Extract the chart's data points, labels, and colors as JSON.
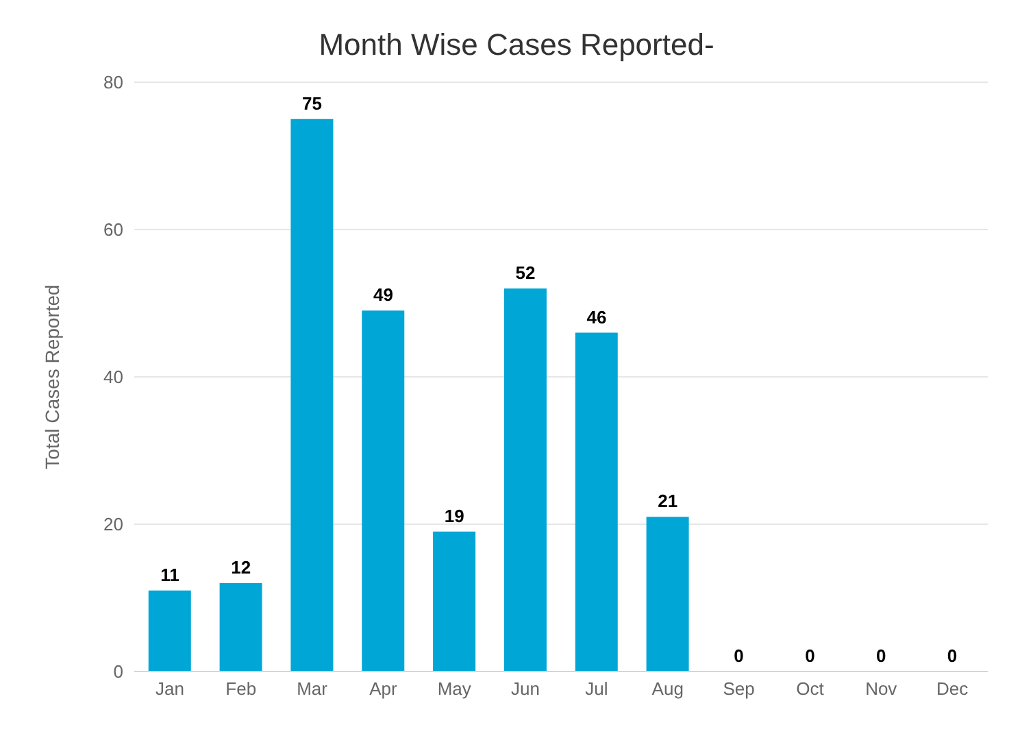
{
  "chart_data": {
    "type": "bar",
    "title": "Month Wise Cases Reported-",
    "ylabel": "Total Cases Reported",
    "categories": [
      "Jan",
      "Feb",
      "Mar",
      "Apr",
      "May",
      "Jun",
      "Jul",
      "Aug",
      "Sep",
      "Oct",
      "Nov",
      "Dec"
    ],
    "values": [
      11,
      12,
      75,
      49,
      19,
      52,
      46,
      21,
      0,
      0,
      0,
      0
    ],
    "color": "#00a6d6",
    "ylim": [
      0,
      80
    ],
    "yticks": [
      0,
      20,
      40,
      60,
      80
    ],
    "grid": "y",
    "data_labels": true
  }
}
